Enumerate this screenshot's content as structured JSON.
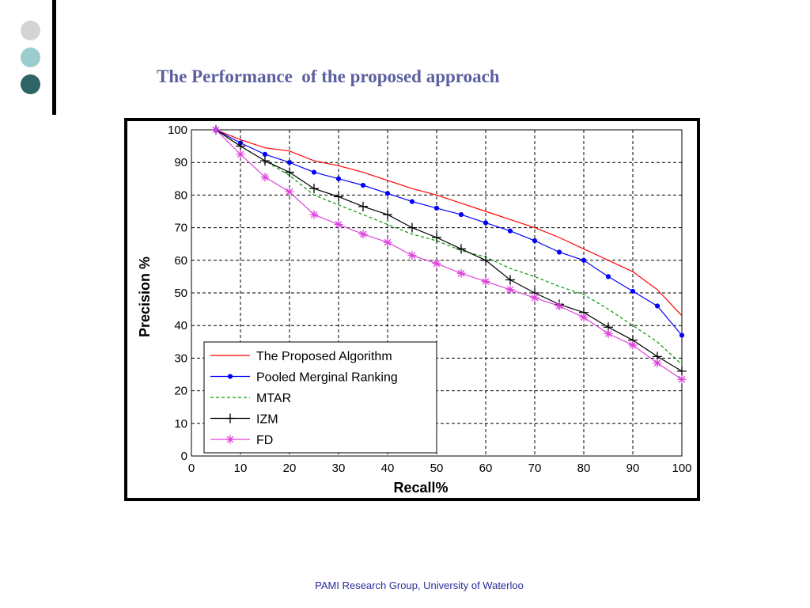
{
  "slide": {
    "title": "The Performance  of the proposed approach",
    "footer": "PAMI Research Group, University of Waterloo",
    "bullet_colors": [
      "#d4d4d4",
      "#9ccccc",
      "#2e6466"
    ]
  },
  "chart_data": {
    "type": "line",
    "title": "",
    "xlabel": "Recall%",
    "ylabel": "Precision %",
    "xlim": [
      0,
      100
    ],
    "ylim": [
      0,
      100
    ],
    "xticks": [
      0,
      10,
      20,
      30,
      40,
      50,
      60,
      70,
      80,
      90,
      100
    ],
    "yticks": [
      0,
      10,
      20,
      30,
      40,
      50,
      60,
      70,
      80,
      90,
      100
    ],
    "grid": true,
    "legend_position": "bottom-left",
    "series": [
      {
        "name": "The Proposed Algorithm",
        "color": "#ff0000",
        "dash": "solid",
        "marker": "none",
        "x": [
          5,
          10,
          15,
          20,
          25,
          30,
          35,
          40,
          45,
          50,
          55,
          60,
          65,
          70,
          75,
          80,
          85,
          90,
          95,
          100
        ],
        "y": [
          100,
          97,
          94.5,
          93.5,
          90.5,
          89,
          87,
          84.5,
          82,
          80,
          77.5,
          75,
          72.5,
          70,
          67,
          63.5,
          60,
          56.5,
          51,
          43
        ]
      },
      {
        "name": "Pooled Merginal Ranking",
        "color": "#0000ff",
        "dash": "solid",
        "marker": "dot",
        "x": [
          5,
          10,
          15,
          20,
          25,
          30,
          35,
          40,
          45,
          50,
          55,
          60,
          65,
          70,
          75,
          80,
          85,
          90,
          95,
          100
        ],
        "y": [
          100,
          96,
          92.5,
          90,
          87,
          85,
          83,
          80.5,
          78,
          76,
          74,
          71.5,
          69,
          66,
          62.5,
          60,
          55,
          50.5,
          46,
          37
        ]
      },
      {
        "name": "MTAR",
        "color": "#009900",
        "dash": "dashed",
        "marker": "none",
        "x": [
          5,
          10,
          15,
          20,
          25,
          30,
          35,
          40,
          45,
          50,
          55,
          60,
          65,
          70,
          75,
          80,
          85,
          90,
          95,
          100
        ],
        "y": [
          100,
          95,
          90.5,
          86,
          80,
          77,
          74,
          71,
          68,
          66,
          63,
          61,
          57.5,
          55,
          52,
          49.5,
          45,
          40,
          35,
          28
        ]
      },
      {
        "name": "IZM",
        "color": "#000000",
        "dash": "solid",
        "marker": "plus",
        "x": [
          5,
          10,
          15,
          20,
          25,
          30,
          35,
          40,
          45,
          50,
          55,
          60,
          65,
          70,
          75,
          80,
          85,
          90,
          95,
          100
        ],
        "y": [
          100,
          95,
          90.5,
          87,
          82,
          79.5,
          76.5,
          74,
          70,
          67,
          63.5,
          60,
          54,
          50,
          46.5,
          44,
          39.5,
          35.5,
          30.5,
          26
        ]
      },
      {
        "name": "FD",
        "color": "#dd44dd",
        "dash": "solid",
        "marker": "star",
        "x": [
          5,
          10,
          15,
          20,
          25,
          30,
          35,
          40,
          45,
          50,
          55,
          60,
          65,
          70,
          75,
          80,
          85,
          90,
          95,
          100
        ],
        "y": [
          100,
          92.5,
          85.5,
          81,
          74,
          71,
          68,
          65.5,
          61.5,
          59,
          56,
          53.5,
          51,
          48.5,
          46,
          42.5,
          37.5,
          34,
          28.5,
          23.5
        ]
      }
    ]
  }
}
